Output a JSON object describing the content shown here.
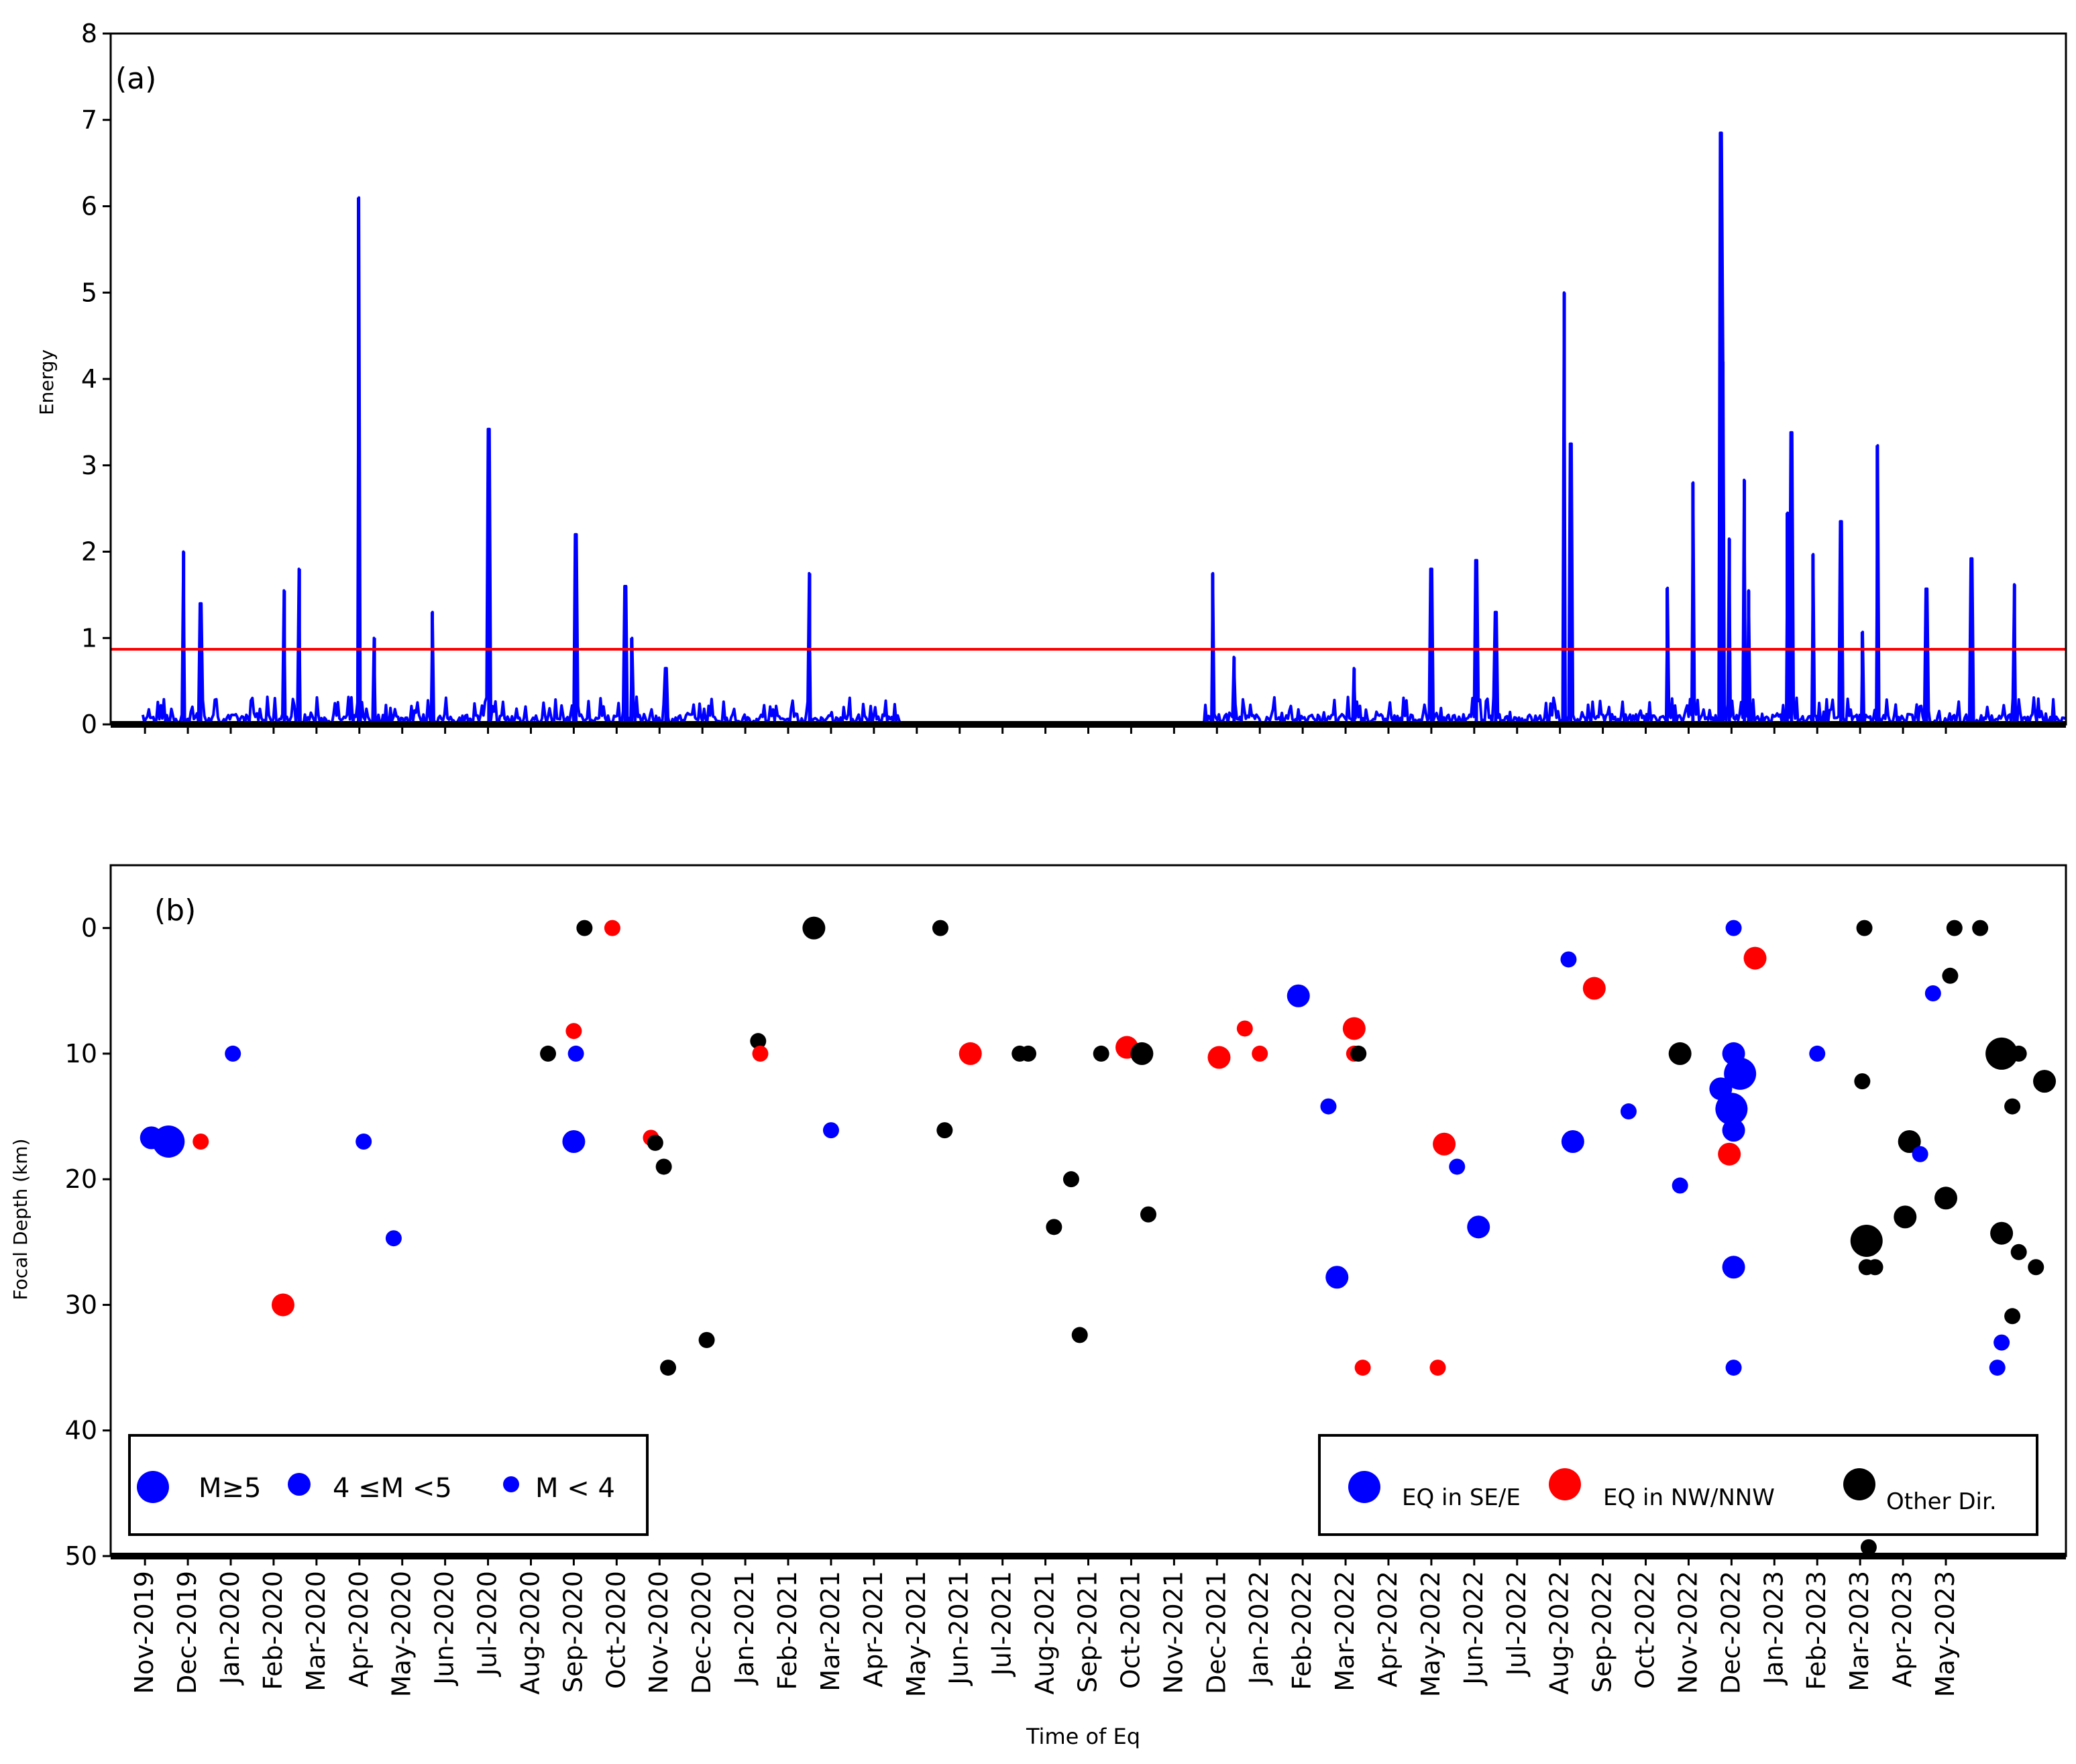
{
  "colors": {
    "energy_line": "#0000ff",
    "threshold": "#ff0000",
    "se_e": "#0000ff",
    "nw_nnw": "#ff0000",
    "other": "#000000"
  },
  "chart_data": [
    {
      "type": "line",
      "panel_label": "(a)",
      "ylabel": "Energy",
      "ylim": [
        0,
        8
      ],
      "yticks": [
        "0",
        "1",
        "2",
        "3",
        "4",
        "5",
        "6",
        "7",
        "8"
      ],
      "threshold": 0.87,
      "x_unit": "months since Nov-2019",
      "spikes": [
        {
          "x": 0.9,
          "y": 2.0
        },
        {
          "x": 1.3,
          "y": 1.4
        },
        {
          "x": 3.25,
          "y": 1.55
        },
        {
          "x": 3.6,
          "y": 1.8
        },
        {
          "x": 4.98,
          "y": 6.1
        },
        {
          "x": 5.35,
          "y": 1.0
        },
        {
          "x": 6.7,
          "y": 1.3
        },
        {
          "x": 8.02,
          "y": 3.42
        },
        {
          "x": 10.05,
          "y": 2.2
        },
        {
          "x": 11.2,
          "y": 1.6
        },
        {
          "x": 11.35,
          "y": 1.0
        },
        {
          "x": 12.15,
          "y": 0.65
        },
        {
          "x": 15.5,
          "y": 1.75
        },
        {
          "x": 24.9,
          "y": 1.75
        },
        {
          "x": 25.4,
          "y": 0.78
        },
        {
          "x": 28.2,
          "y": 0.65
        },
        {
          "x": 30.0,
          "y": 1.8
        },
        {
          "x": 31.05,
          "y": 1.9
        },
        {
          "x": 31.5,
          "y": 1.3
        },
        {
          "x": 33.1,
          "y": 5.0
        },
        {
          "x": 33.25,
          "y": 3.25
        },
        {
          "x": 35.5,
          "y": 1.58
        },
        {
          "x": 36.1,
          "y": 2.8
        },
        {
          "x": 36.75,
          "y": 6.85
        },
        {
          "x": 36.8,
          "y": 4.2
        },
        {
          "x": 36.95,
          "y": 2.15
        },
        {
          "x": 37.3,
          "y": 2.83
        },
        {
          "x": 37.4,
          "y": 1.55
        },
        {
          "x": 38.3,
          "y": 2.45
        },
        {
          "x": 38.4,
          "y": 3.38
        },
        {
          "x": 38.9,
          "y": 1.97
        },
        {
          "x": 39.55,
          "y": 2.35
        },
        {
          "x": 40.05,
          "y": 1.07
        },
        {
          "x": 40.4,
          "y": 3.23
        },
        {
          "x": 41.55,
          "y": 1.57
        },
        {
          "x": 42.6,
          "y": 1.92
        },
        {
          "x": 43.6,
          "y": 1.62
        }
      ]
    },
    {
      "type": "scatter",
      "panel_label": "(b)",
      "ylabel": "Focal Depth (km)",
      "xlabel": "Time of Eq",
      "ylim": [
        50,
        -5
      ],
      "yticks": [
        "0",
        "10",
        "20",
        "30",
        "40",
        "50"
      ],
      "x_unit": "months since Nov-2019",
      "xticks": [
        "Nov-2019",
        "Dec-2019",
        "Jan-2020",
        "Feb-2020",
        "Mar-2020",
        "Apr-2020",
        "May-2020",
        "Jun-2020",
        "Jul-2020",
        "Aug-2020",
        "Sep-2020",
        "Oct-2020",
        "Nov-2020",
        "Dec-2020",
        "Jan-2021",
        "Feb-2021",
        "Mar-2021",
        "Apr-2021",
        "May-2021",
        "Jun-2021",
        "Jul-2021",
        "Aug-2021",
        "Sep-2021",
        "Oct-2021",
        "Nov-2021",
        "Dec-2021",
        "Jan-2022",
        "Feb-2022",
        "Mar-2022",
        "Apr-2022",
        "May-2022",
        "Jun-2022",
        "Jul-2022",
        "Aug-2022",
        "Sep-2022",
        "Oct-2022",
        "Nov-2022",
        "Dec-2022",
        "Jan-2023",
        "Feb-2023",
        "Mar-2023",
        "Apr-2023",
        "May-2023"
      ],
      "size_legend": [
        "M≥5",
        "4 ≤M <5",
        "M < 4"
      ],
      "direction_legend": [
        "EQ in SE/E",
        "EQ in NW/NNW",
        "Other Dir."
      ],
      "points": [
        {
          "x": 0.15,
          "y": 16.7,
          "dir": "SE/E",
          "mag": "4-5"
        },
        {
          "x": 0.55,
          "y": 17.0,
          "dir": "SE/E",
          "mag": "M>=5"
        },
        {
          "x": 1.3,
          "y": 17.0,
          "dir": "NW/NNW",
          "mag": "M<4"
        },
        {
          "x": 2.05,
          "y": 10.0,
          "dir": "SE/E",
          "mag": "M<4"
        },
        {
          "x": 3.22,
          "y": 30.0,
          "dir": "NW/NNW",
          "mag": "4-5"
        },
        {
          "x": 5.1,
          "y": 17.0,
          "dir": "SE/E",
          "mag": "M<4"
        },
        {
          "x": 5.8,
          "y": 24.7,
          "dir": "SE/E",
          "mag": "M<4"
        },
        {
          "x": 9.4,
          "y": 10.0,
          "dir": "Other",
          "mag": "M<4"
        },
        {
          "x": 10.0,
          "y": 8.2,
          "dir": "NW/NNW",
          "mag": "M<4"
        },
        {
          "x": 10.05,
          "y": 10.0,
          "dir": "SE/E",
          "mag": "M<4"
        },
        {
          "x": 10.0,
          "y": 17.0,
          "dir": "SE/E",
          "mag": "4-5"
        },
        {
          "x": 10.25,
          "y": 0.0,
          "dir": "Other",
          "mag": "M<4"
        },
        {
          "x": 10.9,
          "y": 0.0,
          "dir": "NW/NNW",
          "mag": "M<4"
        },
        {
          "x": 11.8,
          "y": 16.7,
          "dir": "NW/NNW",
          "mag": "M<4"
        },
        {
          "x": 11.9,
          "y": 17.1,
          "dir": "Other",
          "mag": "M<4"
        },
        {
          "x": 12.1,
          "y": 19.0,
          "dir": "Other",
          "mag": "M<4"
        },
        {
          "x": 12.2,
          "y": 35.0,
          "dir": "Other",
          "mag": "M<4"
        },
        {
          "x": 13.1,
          "y": 32.8,
          "dir": "Other",
          "mag": "M<4"
        },
        {
          "x": 14.3,
          "y": 9.0,
          "dir": "Other",
          "mag": "M<4"
        },
        {
          "x": 14.35,
          "y": 10.0,
          "dir": "NW/NNW",
          "mag": "M<4"
        },
        {
          "x": 15.6,
          "y": 0.0,
          "dir": "Other",
          "mag": "4-5"
        },
        {
          "x": 16.0,
          "y": 16.1,
          "dir": "SE/E",
          "mag": "M<4"
        },
        {
          "x": 18.55,
          "y": 0.0,
          "dir": "Other",
          "mag": "M<4"
        },
        {
          "x": 18.65,
          "y": 16.1,
          "dir": "Other",
          "mag": "M<4"
        },
        {
          "x": 19.25,
          "y": 10.0,
          "dir": "NW/NNW",
          "mag": "4-5"
        },
        {
          "x": 20.4,
          "y": 10.0,
          "dir": "Other",
          "mag": "M<4"
        },
        {
          "x": 20.6,
          "y": 10.0,
          "dir": "Other",
          "mag": "M<4"
        },
        {
          "x": 21.2,
          "y": 23.8,
          "dir": "Other",
          "mag": "M<4"
        },
        {
          "x": 21.6,
          "y": 20.0,
          "dir": "Other",
          "mag": "M<4"
        },
        {
          "x": 21.8,
          "y": 32.4,
          "dir": "Other",
          "mag": "M<4"
        },
        {
          "x": 22.3,
          "y": 10.0,
          "dir": "Other",
          "mag": "M<4"
        },
        {
          "x": 22.9,
          "y": 9.5,
          "dir": "NW/NNW",
          "mag": "4-5"
        },
        {
          "x": 23.25,
          "y": 10.0,
          "dir": "Other",
          "mag": "4-5"
        },
        {
          "x": 23.4,
          "y": 22.8,
          "dir": "Other",
          "mag": "M<4"
        },
        {
          "x": 25.05,
          "y": 10.3,
          "dir": "NW/NNW",
          "mag": "4-5"
        },
        {
          "x": 25.65,
          "y": 8.0,
          "dir": "NW/NNW",
          "mag": "M<4"
        },
        {
          "x": 26.0,
          "y": 10.0,
          "dir": "NW/NNW",
          "mag": "M<4"
        },
        {
          "x": 26.9,
          "y": 5.4,
          "dir": "SE/E",
          "mag": "4-5"
        },
        {
          "x": 27.6,
          "y": 14.2,
          "dir": "SE/E",
          "mag": "M<4"
        },
        {
          "x": 27.8,
          "y": 27.8,
          "dir": "SE/E",
          "mag": "4-5"
        },
        {
          "x": 28.2,
          "y": 8.0,
          "dir": "NW/NNW",
          "mag": "4-5"
        },
        {
          "x": 28.2,
          "y": 10.0,
          "dir": "NW/NNW",
          "mag": "M<4"
        },
        {
          "x": 28.3,
          "y": 10.0,
          "dir": "Other",
          "mag": "M<4"
        },
        {
          "x": 28.4,
          "y": 35.0,
          "dir": "NW/NNW",
          "mag": "M<4"
        },
        {
          "x": 30.15,
          "y": 35.0,
          "dir": "NW/NNW",
          "mag": "M<4"
        },
        {
          "x": 30.3,
          "y": 17.2,
          "dir": "NW/NNW",
          "mag": "4-5"
        },
        {
          "x": 30.6,
          "y": 19.0,
          "dir": "SE/E",
          "mag": "M<4"
        },
        {
          "x": 31.1,
          "y": 23.8,
          "dir": "SE/E",
          "mag": "4-5"
        },
        {
          "x": 33.2,
          "y": 2.5,
          "dir": "SE/E",
          "mag": "M<4"
        },
        {
          "x": 33.3,
          "y": 17.0,
          "dir": "SE/E",
          "mag": "4-5"
        },
        {
          "x": 33.8,
          "y": 4.8,
          "dir": "NW/NNW",
          "mag": "4-5"
        },
        {
          "x": 34.6,
          "y": 14.6,
          "dir": "SE/E",
          "mag": "M<4"
        },
        {
          "x": 35.8,
          "y": 20.5,
          "dir": "SE/E",
          "mag": "M<4"
        },
        {
          "x": 35.8,
          "y": 10.0,
          "dir": "Other",
          "mag": "4-5"
        },
        {
          "x": 36.75,
          "y": 12.8,
          "dir": "SE/E",
          "mag": "4-5"
        },
        {
          "x": 36.95,
          "y": 18.0,
          "dir": "NW/NNW",
          "mag": "4-5"
        },
        {
          "x": 37.05,
          "y": 0.0,
          "dir": "SE/E",
          "mag": "M<4"
        },
        {
          "x": 37.05,
          "y": 10.0,
          "dir": "SE/E",
          "mag": "4-5"
        },
        {
          "x": 37.2,
          "y": 11.6,
          "dir": "SE/E",
          "mag": "M>=5"
        },
        {
          "x": 37.0,
          "y": 14.4,
          "dir": "SE/E",
          "mag": "M>=5"
        },
        {
          "x": 37.05,
          "y": 16.1,
          "dir": "SE/E",
          "mag": "4-5"
        },
        {
          "x": 37.05,
          "y": 27.0,
          "dir": "SE/E",
          "mag": "4-5"
        },
        {
          "x": 37.05,
          "y": 35.0,
          "dir": "SE/E",
          "mag": "M<4"
        },
        {
          "x": 37.55,
          "y": 2.4,
          "dir": "NW/NNW",
          "mag": "4-5"
        },
        {
          "x": 39.0,
          "y": 10.0,
          "dir": "SE/E",
          "mag": "M<4"
        },
        {
          "x": 40.1,
          "y": 0.0,
          "dir": "Other",
          "mag": "M<4"
        },
        {
          "x": 40.05,
          "y": 12.2,
          "dir": "Other",
          "mag": "M<4"
        },
        {
          "x": 40.15,
          "y": 24.9,
          "dir": "Other",
          "mag": "M>=5"
        },
        {
          "x": 40.15,
          "y": 27.0,
          "dir": "Other",
          "mag": "M<4"
        },
        {
          "x": 40.35,
          "y": 27.0,
          "dir": "Other",
          "mag": "M<4"
        },
        {
          "x": 40.2,
          "y": 49.3,
          "dir": "Other",
          "mag": "M<4"
        },
        {
          "x": 41.05,
          "y": 23.0,
          "dir": "Other",
          "mag": "4-5"
        },
        {
          "x": 41.15,
          "y": 17.0,
          "dir": "Other",
          "mag": "4-5"
        },
        {
          "x": 41.4,
          "y": 18.0,
          "dir": "SE/E",
          "mag": "M<4"
        },
        {
          "x": 41.7,
          "y": 5.2,
          "dir": "SE/E",
          "mag": "M<4"
        },
        {
          "x": 42.1,
          "y": 3.8,
          "dir": "Other",
          "mag": "M<4"
        },
        {
          "x": 42.2,
          "y": 0.0,
          "dir": "Other",
          "mag": "M<4"
        },
        {
          "x": 42.0,
          "y": 21.5,
          "dir": "Other",
          "mag": "4-5"
        },
        {
          "x": 42.8,
          "y": 0.0,
          "dir": "Other",
          "mag": "M<4"
        },
        {
          "x": 43.2,
          "y": 35.0,
          "dir": "SE/E",
          "mag": "M<4"
        },
        {
          "x": 43.3,
          "y": 33.0,
          "dir": "SE/E",
          "mag": "M<4"
        },
        {
          "x": 43.3,
          "y": 24.3,
          "dir": "Other",
          "mag": "4-5"
        },
        {
          "x": 43.3,
          "y": 10.0,
          "dir": "Other",
          "mag": "M>=5"
        },
        {
          "x": 43.55,
          "y": 14.2,
          "dir": "Other",
          "mag": "M<4"
        },
        {
          "x": 43.55,
          "y": 30.9,
          "dir": "Other",
          "mag": "M<4"
        },
        {
          "x": 43.7,
          "y": 10.0,
          "dir": "Other",
          "mag": "M<4"
        },
        {
          "x": 43.7,
          "y": 25.8,
          "dir": "Other",
          "mag": "M<4"
        },
        {
          "x": 44.1,
          "y": 27.0,
          "dir": "Other",
          "mag": "M<4"
        },
        {
          "x": 44.3,
          "y": 12.2,
          "dir": "Other",
          "mag": "4-5"
        }
      ]
    }
  ]
}
